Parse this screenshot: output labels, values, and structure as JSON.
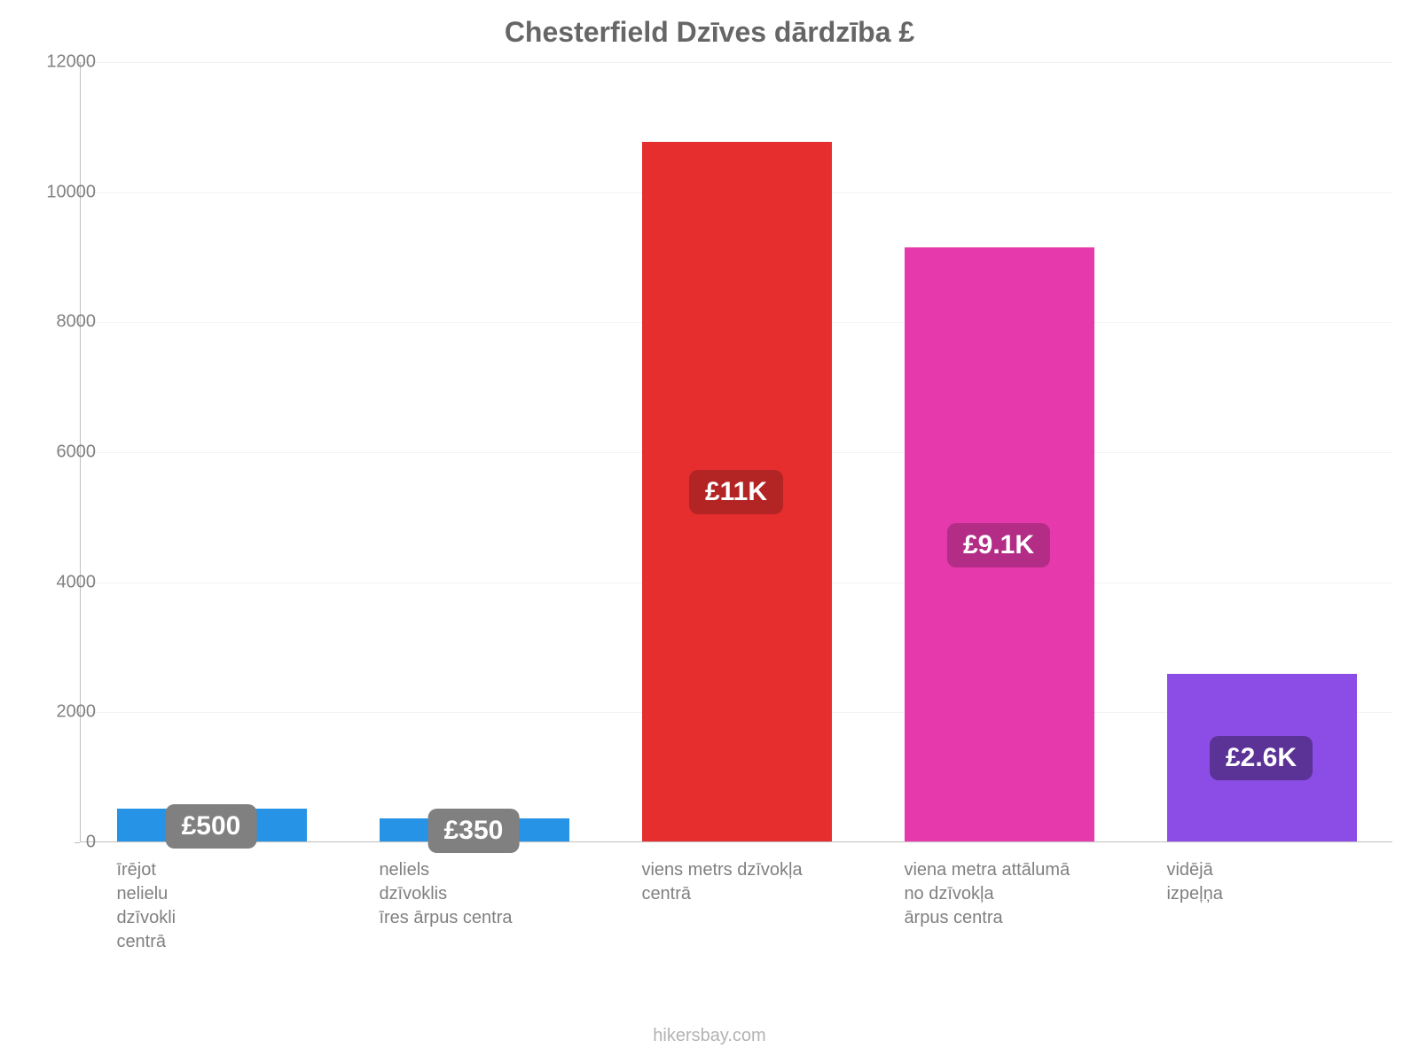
{
  "chart": {
    "type": "bar",
    "title": "Chesterfield Dzīves dārdzība £",
    "title_fontsize": 32,
    "title_color": "#666666",
    "background_color": "#ffffff",
    "grid_color": "#f2f2f2",
    "axis_color": "#bfbfbf",
    "tick_label_color": "#808080",
    "tick_label_fontsize": 20,
    "xlabel_fontsize": 20,
    "xlabel_color": "#808080",
    "ylim": [
      0,
      12000
    ],
    "ytick_step": 2000,
    "yticks": [
      {
        "value": 0,
        "label": "0"
      },
      {
        "value": 2000,
        "label": "2000"
      },
      {
        "value": 4000,
        "label": "4000"
      },
      {
        "value": 6000,
        "label": "6000"
      },
      {
        "value": 8000,
        "label": "8000"
      },
      {
        "value": 10000,
        "label": "10000"
      },
      {
        "value": 12000,
        "label": "12000"
      }
    ],
    "label_badge_fontsize": 30,
    "label_badge_radius": 10,
    "bars": [
      {
        "category": "īrējot\nnelielu\ndzīvokli\ncentrā",
        "value": 500,
        "value_label": "£500",
        "fill": "#2693e6",
        "label_bg": "#808080",
        "label_text": "#ffffff"
      },
      {
        "category": "neliels\ndzīvoklis\nīres ārpus centra",
        "value": 350,
        "value_label": "£350",
        "fill": "#2693e6",
        "label_bg": "#808080",
        "label_text": "#ffffff"
      },
      {
        "category": "viens metrs dzīvokļa\ncentrā",
        "value": 10760,
        "value_label": "£11K",
        "fill": "#e62e2e",
        "label_bg": "#b32424",
        "label_text": "#ffffff"
      },
      {
        "category": "viena metra attālumā\nno dzīvokļa\nārpus centra",
        "value": 9140,
        "value_label": "£9.1K",
        "fill": "#e639ac",
        "label_bg": "#b32d86",
        "label_text": "#ffffff"
      },
      {
        "category": "vidējā\nizpeļņa",
        "value": 2580,
        "value_label": "£2.6K",
        "fill": "#8c4de6",
        "label_bg": "#5b3296",
        "label_text": "#ffffff"
      }
    ],
    "attribution": "hikersbay.com",
    "attribution_color": "#b3b3b3",
    "attribution_fontsize": 20
  }
}
